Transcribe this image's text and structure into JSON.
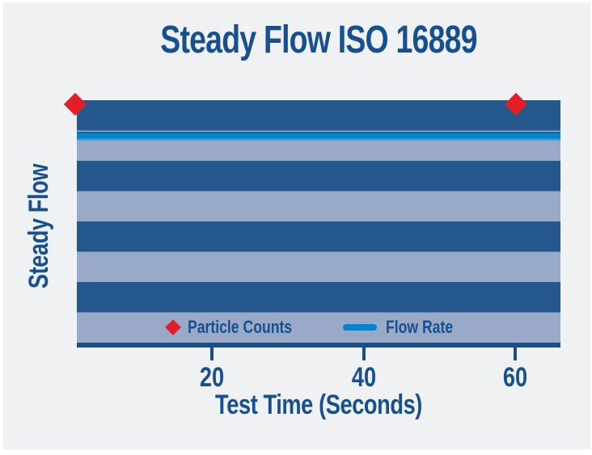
{
  "title": "Steady Flow ISO 16889",
  "y_axis": {
    "label": "Steady Flow"
  },
  "x_axis": {
    "label": "Test Time (Seconds)",
    "ticks": [
      "20",
      "40",
      "60"
    ]
  },
  "legend": {
    "particle_counts_label": "Particle Counts",
    "flow_rate_label": "Flow Rate"
  },
  "colors": {
    "background": "#f0f1f3",
    "frame": "#ffffff",
    "stripe_dark": "#24588c",
    "stripe_light": "#99a9c8",
    "flow_line": "#0086cf",
    "flow_line_edge": "#1565a8",
    "marker_red": "#e41e25",
    "text_blue": "#17508f",
    "axis_blue": "#1c4f85"
  },
  "chart_data": {
    "type": "line",
    "title": "Steady Flow ISO 16889",
    "xlabel": "Test Time (Seconds)",
    "ylabel": "Steady Flow",
    "x_ticks": [
      20,
      40,
      60
    ],
    "xlim": [
      2,
      66
    ],
    "y_axis_ticks": "none (qualitative axis, constant steady flow)",
    "grid": "off (decorative horizontal alternating blue stripes fill plot)",
    "legend_position": "inside bottom center",
    "series": [
      {
        "name": "Particle Counts",
        "type": "scatter",
        "marker": "diamond",
        "color": "#e41e25",
        "points": [
          {
            "x": 2,
            "y_pct_of_axis": 100
          },
          {
            "x": 60,
            "y_pct_of_axis": 100
          }
        ],
        "note": "two red diamond markers sitting on the top edge of the plot"
      },
      {
        "name": "Flow Rate",
        "type": "line",
        "color": "#0086cf",
        "points": [
          {
            "x": 2,
            "y_pct_of_axis": 87
          },
          {
            "x": 66,
            "y_pct_of_axis": 87
          }
        ],
        "note": "horizontal constant line spanning full plot width near the top"
      }
    ]
  }
}
